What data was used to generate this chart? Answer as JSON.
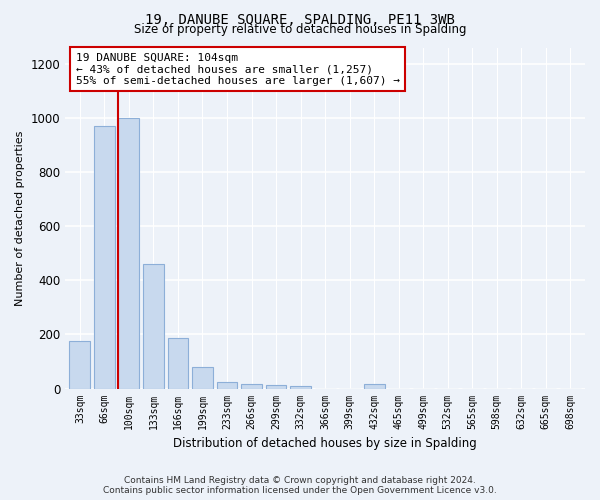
{
  "title": "19, DANUBE SQUARE, SPALDING, PE11 3WB",
  "subtitle": "Size of property relative to detached houses in Spalding",
  "xlabel": "Distribution of detached houses by size in Spalding",
  "ylabel": "Number of detached properties",
  "bar_color": "#c8d9ee",
  "bar_edge_color": "#8dafd8",
  "categories": [
    "33sqm",
    "66sqm",
    "100sqm",
    "133sqm",
    "166sqm",
    "199sqm",
    "233sqm",
    "266sqm",
    "299sqm",
    "332sqm",
    "366sqm",
    "399sqm",
    "432sqm",
    "465sqm",
    "499sqm",
    "532sqm",
    "565sqm",
    "598sqm",
    "632sqm",
    "665sqm",
    "698sqm"
  ],
  "values": [
    175,
    970,
    1000,
    460,
    185,
    80,
    25,
    18,
    13,
    8,
    0,
    0,
    18,
    0,
    0,
    0,
    0,
    0,
    0,
    0,
    0
  ],
  "ylim": [
    0,
    1260
  ],
  "yticks": [
    0,
    200,
    400,
    600,
    800,
    1000,
    1200
  ],
  "property_bar_index": 2,
  "red_line_color": "#cc0000",
  "annotation_text": "19 DANUBE SQUARE: 104sqm\n← 43% of detached houses are smaller (1,257)\n55% of semi-detached houses are larger (1,607) →",
  "annotation_box_color": "#ffffff",
  "annotation_box_edge_color": "#cc0000",
  "footer_text": "Contains HM Land Registry data © Crown copyright and database right 2024.\nContains public sector information licensed under the Open Government Licence v3.0.",
  "background_color": "#edf2f9",
  "grid_color": "#ffffff"
}
